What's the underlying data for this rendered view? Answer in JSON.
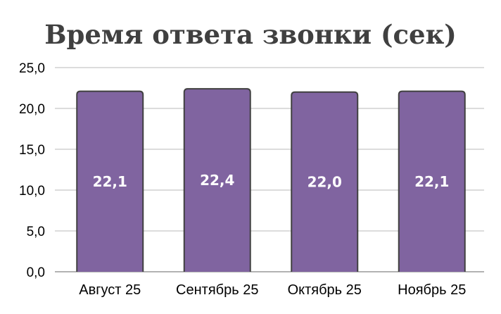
{
  "chart_data": {
    "type": "bar",
    "title": "Время ответа звонки (сек)",
    "xlabel": "",
    "ylabel": "",
    "categories": [
      "Август 25",
      "Сентябрь 25",
      "Октябрь 25",
      "Ноябрь 25"
    ],
    "values": [
      22.1,
      22.4,
      22.0,
      22.1
    ],
    "data_labels": [
      "22,1",
      "22,4",
      "22,0",
      "22,1"
    ],
    "ylim": [
      0,
      25
    ],
    "yticks": [
      "0,0",
      "5,0",
      "10,0",
      "15,0",
      "20,0",
      "25,0"
    ],
    "grid": true,
    "legend": "none",
    "colors": {
      "bar": "#8064A0",
      "bar_outline": "#404040",
      "grid": "#D0D0D0",
      "title": "#404040"
    }
  }
}
